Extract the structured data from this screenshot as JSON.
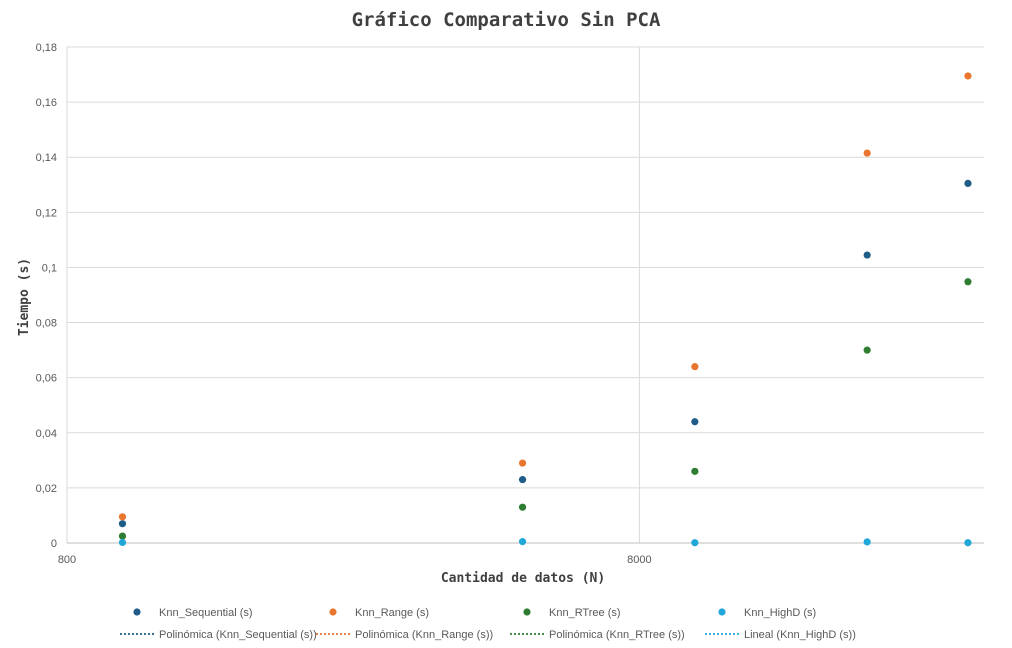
{
  "chart_data": {
    "type": "scatter",
    "title": "Gráfico Comparativo Sin PCA",
    "xlabel": "Cantidad de datos (N)",
    "ylabel": "Tiempo (s)",
    "x_scale": "log",
    "xlim": [
      800,
      32000
    ],
    "ylim": [
      0,
      0.18
    ],
    "x_ticks": [
      800,
      8000
    ],
    "x_tick_labels": [
      "800",
      "8000"
    ],
    "y_ticks": [
      0,
      0.02,
      0.04,
      0.06,
      0.08,
      0.1,
      0.12,
      0.14,
      0.16,
      0.18
    ],
    "y_tick_labels": [
      "0",
      "0,02",
      "0,04",
      "0,06",
      "0,08",
      "0,1",
      "0,12",
      "0,14",
      "0,16",
      "0,18"
    ],
    "grid": true,
    "legend_position": "bottom",
    "x": [
      1000,
      5000,
      10000,
      20000,
      30000
    ],
    "series": [
      {
        "name": "Knn_Sequential (s)",
        "color": "#1f5c87",
        "values": [
          0.007,
          0.023,
          0.044,
          0.1045,
          0.1305
        ]
      },
      {
        "name": "Knn_Range (s)",
        "color": "#e8762e",
        "values": [
          0.0095,
          0.029,
          0.064,
          0.1415,
          0.1695
        ]
      },
      {
        "name": "Knn_RTree (s)",
        "color": "#2e7d32",
        "values": [
          0.0025,
          0.013,
          0.026,
          0.07,
          0.0948
        ]
      },
      {
        "name": "Knn_HighD (s)",
        "color": "#22a7d9",
        "values": [
          0.0002,
          0.0005,
          0.0001,
          0.0004,
          0.0001
        ]
      }
    ],
    "trendlines": [
      {
        "name": "Polinómica (Knn_Sequential (s))",
        "color": "#1f5c87",
        "series": "Knn_Sequential (s)",
        "fit": "polynomial"
      },
      {
        "name": "Polinómica (Knn_Range (s))",
        "color": "#e8762e",
        "series": "Knn_Range (s)",
        "fit": "polynomial"
      },
      {
        "name": "Polinómica (Knn_RTree (s))",
        "color": "#2e7d32",
        "series": "Knn_RTree (s)",
        "fit": "polynomial"
      },
      {
        "name": "Lineal (Knn_HighD (s))",
        "color": "#22a7d9",
        "series": "Knn_HighD (s)",
        "fit": "linear"
      }
    ]
  }
}
